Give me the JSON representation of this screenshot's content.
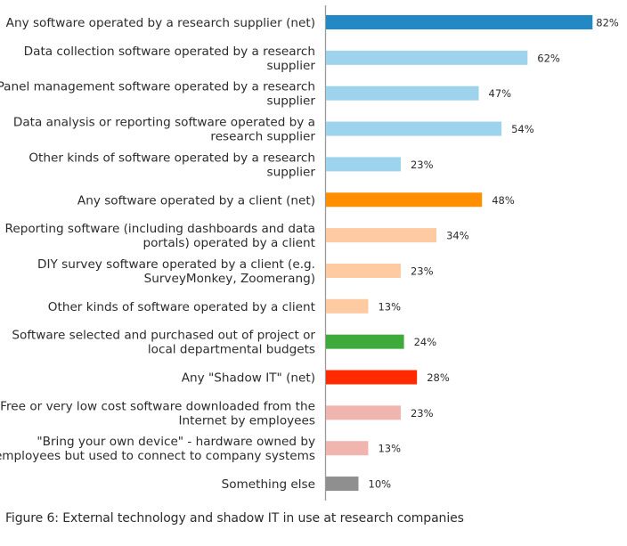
{
  "caption": "Figure 6: External technology and shadow IT in use at research companies",
  "chart_data": {
    "type": "bar",
    "orientation": "horizontal",
    "title": "",
    "xlabel": "",
    "ylabel": "",
    "xlim": [
      0,
      100
    ],
    "grid": false,
    "legend": "none",
    "value_suffix": "%",
    "categories": [
      [
        "Any software operated by a research supplier (net)"
      ],
      [
        "Data collection software operated by a research",
        "supplier"
      ],
      [
        "Panel management software operated by a research",
        "supplier"
      ],
      [
        "Data analysis or reporting software operated by a",
        "research supplier"
      ],
      [
        "Other kinds of software operated by a research",
        "supplier"
      ],
      [
        "Any software operated by a client (net)"
      ],
      [
        "Reporting software (including dashboards and data",
        "portals) operated by a client"
      ],
      [
        "DIY survey software operated by a client (e.g.",
        "SurveyMonkey, Zoomerang)"
      ],
      [
        "Other kinds of software operated by a client"
      ],
      [
        "Software selected and purchased out of project or",
        "local departmental budgets"
      ],
      [
        "Any \"Shadow IT\" (net)"
      ],
      [
        "Free or very low cost software downloaded from the",
        "Internet by employees"
      ],
      [
        "\"Bring your own device\" - hardware owned by",
        "employees but used to connect to company systems"
      ],
      [
        "Something else"
      ]
    ],
    "values": [
      82,
      62,
      47,
      54,
      23,
      48,
      34,
      23,
      13,
      24,
      28,
      23,
      13,
      10
    ],
    "value_labels": [
      "82%",
      "62%",
      "47%",
      "54%",
      "23%",
      "48%",
      "34%",
      "23%",
      "13%",
      "24%",
      "28%",
      "23%",
      "13%",
      "10%"
    ],
    "colors": [
      "#2389c4",
      "#9dd3ec",
      "#9dd3ec",
      "#9dd3ec",
      "#9dd3ec",
      "#ff8f00",
      "#fdcaa1",
      "#fdcaa1",
      "#fdcaa1",
      "#3daa3b",
      "#ff2a00",
      "#f0b5ae",
      "#f0b5ae",
      "#8f8f8f"
    ],
    "axis_color": "#9a9a9a"
  }
}
